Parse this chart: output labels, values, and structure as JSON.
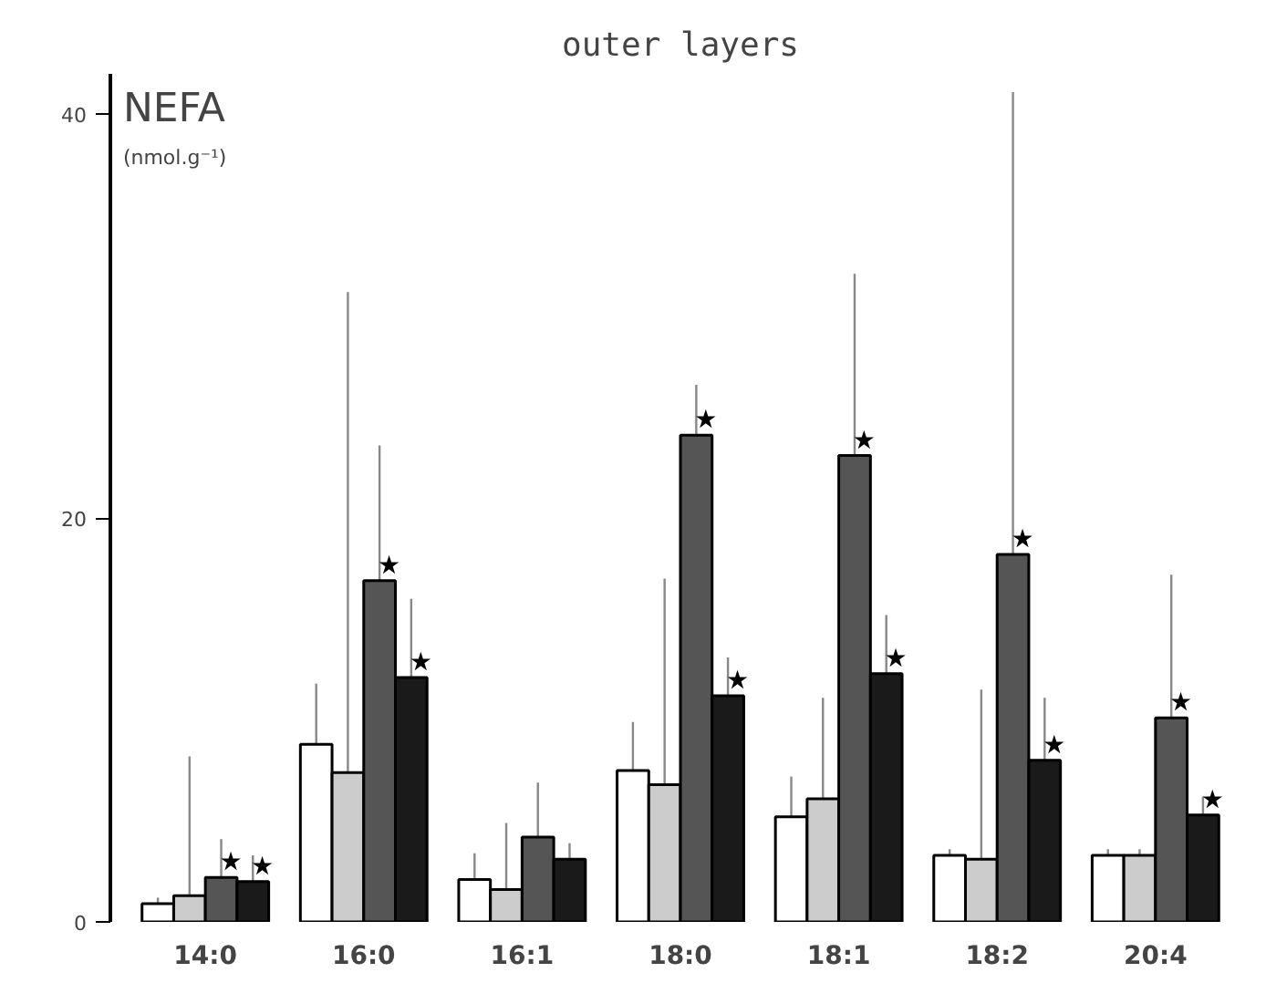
{
  "chart_data": {
    "type": "bar",
    "title": "outer layers",
    "ylabel": "NEFA\n(nmol.g⁻¹)",
    "categories": [
      "14:0",
      "16:0",
      "16:1",
      "18:0",
      "18:1",
      "18:2",
      "20:4"
    ],
    "series": [
      {
        "color": "#ffffff",
        "values": [
          0.9,
          8.8,
          2.1,
          7.5,
          5.2,
          3.3,
          3.3
        ],
        "errors": [
          0.3,
          3.0,
          1.3,
          2.4,
          2.0,
          0.3,
          0.3
        ]
      },
      {
        "color": "#cccccc",
        "values": [
          1.3,
          7.4,
          1.6,
          6.8,
          6.1,
          3.1,
          3.3
        ],
        "errors": [
          6.9,
          23.8,
          3.3,
          10.2,
          5.0,
          8.4,
          0.3
        ]
      },
      {
        "color": "#555555",
        "values": [
          2.2,
          16.9,
          4.2,
          24.1,
          23.1,
          18.2,
          10.1
        ],
        "errors": [
          1.9,
          6.7,
          2.7,
          2.5,
          9.0,
          22.9,
          7.1
        ],
        "value_labels": [
          "★",
          "★",
          null,
          "★",
          "★",
          "★",
          "★"
        ]
      },
      {
        "color": "#1a1a1a",
        "values": [
          2.0,
          12.1,
          3.1,
          11.2,
          12.3,
          8.0,
          5.3
        ],
        "errors": [
          1.3,
          3.9,
          0.8,
          1.9,
          2.9,
          3.1,
          0.9
        ],
        "value_labels": [
          "★",
          "★",
          null,
          "★",
          "★",
          "★",
          "★"
        ]
      }
    ],
    "ylim": [
      0,
      42
    ],
    "yticks": [
      0,
      20,
      40
    ],
    "grid": false
  }
}
